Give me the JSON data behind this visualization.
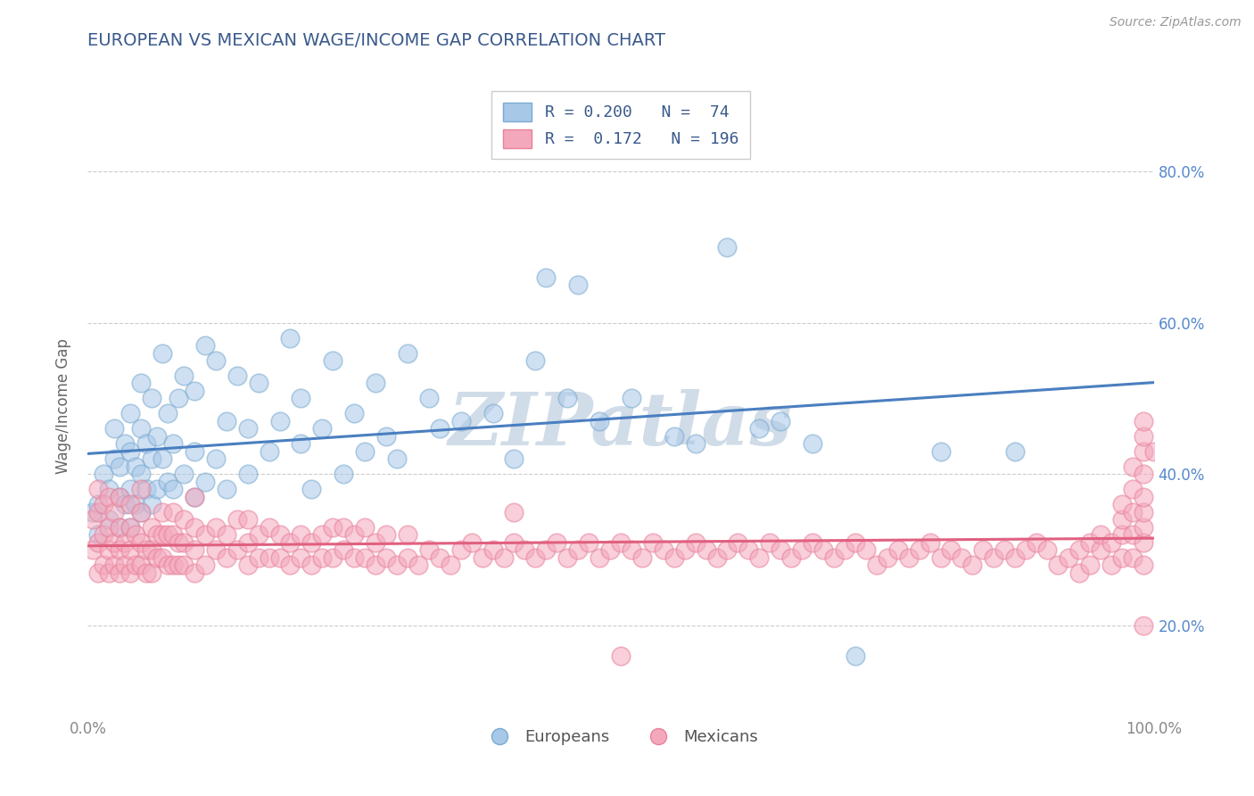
{
  "title": "EUROPEAN VS MEXICAN WAGE/INCOME GAP CORRELATION CHART",
  "source": "Source: ZipAtlas.com",
  "ylabel": "Wage/Income Gap",
  "yticks": [
    0.2,
    0.4,
    0.6,
    0.8
  ],
  "ytick_labels": [
    "20.0%",
    "40.0%",
    "60.0%",
    "80.0%"
  ],
  "xlim": [
    0.0,
    1.0
  ],
  "ylim": [
    0.08,
    0.9
  ],
  "european_color": "#a8c8e8",
  "mexican_color": "#f4a8bc",
  "european_edge_color": "#7aaad0",
  "mexican_edge_color": "#e8809a",
  "european_line_color": "#4a7fc0",
  "mexican_line_color": "#e06080",
  "watermark": "ZIPatlas",
  "watermark_color": "#d0dce8",
  "background_color": "#ffffff",
  "grid_color": "#cccccc",
  "title_color": "#3a5a8c",
  "axis_label_color": "#666666",
  "legend_text_color": "#3a5a8c",
  "european_points": [
    [
      0.005,
      0.35
    ],
    [
      0.01,
      0.32
    ],
    [
      0.01,
      0.36
    ],
    [
      0.015,
      0.4
    ],
    [
      0.02,
      0.34
    ],
    [
      0.02,
      0.38
    ],
    [
      0.025,
      0.42
    ],
    [
      0.025,
      0.46
    ],
    [
      0.03,
      0.33
    ],
    [
      0.03,
      0.37
    ],
    [
      0.03,
      0.41
    ],
    [
      0.035,
      0.36
    ],
    [
      0.035,
      0.44
    ],
    [
      0.04,
      0.33
    ],
    [
      0.04,
      0.38
    ],
    [
      0.04,
      0.43
    ],
    [
      0.04,
      0.48
    ],
    [
      0.045,
      0.36
    ],
    [
      0.045,
      0.41
    ],
    [
      0.05,
      0.35
    ],
    [
      0.05,
      0.4
    ],
    [
      0.05,
      0.46
    ],
    [
      0.05,
      0.52
    ],
    [
      0.055,
      0.38
    ],
    [
      0.055,
      0.44
    ],
    [
      0.06,
      0.36
    ],
    [
      0.06,
      0.42
    ],
    [
      0.06,
      0.5
    ],
    [
      0.065,
      0.38
    ],
    [
      0.065,
      0.45
    ],
    [
      0.07,
      0.56
    ],
    [
      0.07,
      0.42
    ],
    [
      0.075,
      0.39
    ],
    [
      0.075,
      0.48
    ],
    [
      0.08,
      0.38
    ],
    [
      0.08,
      0.44
    ],
    [
      0.085,
      0.5
    ],
    [
      0.09,
      0.4
    ],
    [
      0.09,
      0.53
    ],
    [
      0.1,
      0.37
    ],
    [
      0.1,
      0.43
    ],
    [
      0.1,
      0.51
    ],
    [
      0.11,
      0.39
    ],
    [
      0.11,
      0.57
    ],
    [
      0.12,
      0.42
    ],
    [
      0.12,
      0.55
    ],
    [
      0.13,
      0.38
    ],
    [
      0.13,
      0.47
    ],
    [
      0.14,
      0.53
    ],
    [
      0.15,
      0.4
    ],
    [
      0.15,
      0.46
    ],
    [
      0.16,
      0.52
    ],
    [
      0.17,
      0.43
    ],
    [
      0.18,
      0.47
    ],
    [
      0.19,
      0.58
    ],
    [
      0.2,
      0.44
    ],
    [
      0.2,
      0.5
    ],
    [
      0.21,
      0.38
    ],
    [
      0.22,
      0.46
    ],
    [
      0.23,
      0.55
    ],
    [
      0.24,
      0.4
    ],
    [
      0.25,
      0.48
    ],
    [
      0.26,
      0.43
    ],
    [
      0.27,
      0.52
    ],
    [
      0.28,
      0.45
    ],
    [
      0.29,
      0.42
    ],
    [
      0.3,
      0.56
    ],
    [
      0.32,
      0.5
    ],
    [
      0.33,
      0.46
    ],
    [
      0.35,
      0.47
    ],
    [
      0.38,
      0.48
    ],
    [
      0.4,
      0.42
    ],
    [
      0.42,
      0.55
    ],
    [
      0.43,
      0.66
    ],
    [
      0.45,
      0.5
    ],
    [
      0.46,
      0.65
    ],
    [
      0.48,
      0.47
    ],
    [
      0.51,
      0.5
    ],
    [
      0.55,
      0.45
    ],
    [
      0.57,
      0.44
    ],
    [
      0.6,
      0.7
    ],
    [
      0.63,
      0.46
    ],
    [
      0.65,
      0.47
    ],
    [
      0.68,
      0.44
    ],
    [
      0.72,
      0.16
    ],
    [
      0.8,
      0.43
    ],
    [
      0.87,
      0.43
    ]
  ],
  "mexican_points": [
    [
      0.005,
      0.3
    ],
    [
      0.005,
      0.34
    ],
    [
      0.01,
      0.27
    ],
    [
      0.01,
      0.31
    ],
    [
      0.01,
      0.35
    ],
    [
      0.01,
      0.38
    ],
    [
      0.015,
      0.28
    ],
    [
      0.015,
      0.32
    ],
    [
      0.015,
      0.36
    ],
    [
      0.02,
      0.27
    ],
    [
      0.02,
      0.3
    ],
    [
      0.02,
      0.33
    ],
    [
      0.02,
      0.37
    ],
    [
      0.025,
      0.28
    ],
    [
      0.025,
      0.31
    ],
    [
      0.025,
      0.35
    ],
    [
      0.03,
      0.27
    ],
    [
      0.03,
      0.3
    ],
    [
      0.03,
      0.33
    ],
    [
      0.03,
      0.37
    ],
    [
      0.035,
      0.28
    ],
    [
      0.035,
      0.31
    ],
    [
      0.04,
      0.27
    ],
    [
      0.04,
      0.3
    ],
    [
      0.04,
      0.33
    ],
    [
      0.04,
      0.36
    ],
    [
      0.045,
      0.28
    ],
    [
      0.045,
      0.32
    ],
    [
      0.05,
      0.28
    ],
    [
      0.05,
      0.31
    ],
    [
      0.05,
      0.35
    ],
    [
      0.05,
      0.38
    ],
    [
      0.055,
      0.27
    ],
    [
      0.055,
      0.3
    ],
    [
      0.06,
      0.27
    ],
    [
      0.06,
      0.3
    ],
    [
      0.06,
      0.33
    ],
    [
      0.065,
      0.29
    ],
    [
      0.065,
      0.32
    ],
    [
      0.07,
      0.29
    ],
    [
      0.07,
      0.32
    ],
    [
      0.07,
      0.35
    ],
    [
      0.075,
      0.28
    ],
    [
      0.075,
      0.32
    ],
    [
      0.08,
      0.28
    ],
    [
      0.08,
      0.32
    ],
    [
      0.08,
      0.35
    ],
    [
      0.085,
      0.28
    ],
    [
      0.085,
      0.31
    ],
    [
      0.09,
      0.28
    ],
    [
      0.09,
      0.31
    ],
    [
      0.09,
      0.34
    ],
    [
      0.1,
      0.27
    ],
    [
      0.1,
      0.3
    ],
    [
      0.1,
      0.33
    ],
    [
      0.1,
      0.37
    ],
    [
      0.11,
      0.28
    ],
    [
      0.11,
      0.32
    ],
    [
      0.12,
      0.3
    ],
    [
      0.12,
      0.33
    ],
    [
      0.13,
      0.29
    ],
    [
      0.13,
      0.32
    ],
    [
      0.14,
      0.3
    ],
    [
      0.14,
      0.34
    ],
    [
      0.15,
      0.28
    ],
    [
      0.15,
      0.31
    ],
    [
      0.15,
      0.34
    ],
    [
      0.16,
      0.29
    ],
    [
      0.16,
      0.32
    ],
    [
      0.17,
      0.29
    ],
    [
      0.17,
      0.33
    ],
    [
      0.18,
      0.29
    ],
    [
      0.18,
      0.32
    ],
    [
      0.19,
      0.28
    ],
    [
      0.19,
      0.31
    ],
    [
      0.2,
      0.29
    ],
    [
      0.2,
      0.32
    ],
    [
      0.21,
      0.28
    ],
    [
      0.21,
      0.31
    ],
    [
      0.22,
      0.29
    ],
    [
      0.22,
      0.32
    ],
    [
      0.23,
      0.29
    ],
    [
      0.23,
      0.33
    ],
    [
      0.24,
      0.3
    ],
    [
      0.24,
      0.33
    ],
    [
      0.25,
      0.29
    ],
    [
      0.25,
      0.32
    ],
    [
      0.26,
      0.29
    ],
    [
      0.26,
      0.33
    ],
    [
      0.27,
      0.28
    ],
    [
      0.27,
      0.31
    ],
    [
      0.28,
      0.29
    ],
    [
      0.28,
      0.32
    ],
    [
      0.29,
      0.28
    ],
    [
      0.3,
      0.29
    ],
    [
      0.3,
      0.32
    ],
    [
      0.31,
      0.28
    ],
    [
      0.32,
      0.3
    ],
    [
      0.33,
      0.29
    ],
    [
      0.34,
      0.28
    ],
    [
      0.35,
      0.3
    ],
    [
      0.36,
      0.31
    ],
    [
      0.37,
      0.29
    ],
    [
      0.38,
      0.3
    ],
    [
      0.39,
      0.29
    ],
    [
      0.4,
      0.31
    ],
    [
      0.4,
      0.35
    ],
    [
      0.41,
      0.3
    ],
    [
      0.42,
      0.29
    ],
    [
      0.43,
      0.3
    ],
    [
      0.44,
      0.31
    ],
    [
      0.45,
      0.29
    ],
    [
      0.46,
      0.3
    ],
    [
      0.47,
      0.31
    ],
    [
      0.48,
      0.29
    ],
    [
      0.49,
      0.3
    ],
    [
      0.5,
      0.31
    ],
    [
      0.5,
      0.16
    ],
    [
      0.51,
      0.3
    ],
    [
      0.52,
      0.29
    ],
    [
      0.53,
      0.31
    ],
    [
      0.54,
      0.3
    ],
    [
      0.55,
      0.29
    ],
    [
      0.56,
      0.3
    ],
    [
      0.57,
      0.31
    ],
    [
      0.58,
      0.3
    ],
    [
      0.59,
      0.29
    ],
    [
      0.6,
      0.3
    ],
    [
      0.61,
      0.31
    ],
    [
      0.62,
      0.3
    ],
    [
      0.63,
      0.29
    ],
    [
      0.64,
      0.31
    ],
    [
      0.65,
      0.3
    ],
    [
      0.66,
      0.29
    ],
    [
      0.67,
      0.3
    ],
    [
      0.68,
      0.31
    ],
    [
      0.69,
      0.3
    ],
    [
      0.7,
      0.29
    ],
    [
      0.71,
      0.3
    ],
    [
      0.72,
      0.31
    ],
    [
      0.73,
      0.3
    ],
    [
      0.74,
      0.28
    ],
    [
      0.75,
      0.29
    ],
    [
      0.76,
      0.3
    ],
    [
      0.77,
      0.29
    ],
    [
      0.78,
      0.3
    ],
    [
      0.79,
      0.31
    ],
    [
      0.8,
      0.29
    ],
    [
      0.81,
      0.3
    ],
    [
      0.82,
      0.29
    ],
    [
      0.83,
      0.28
    ],
    [
      0.84,
      0.3
    ],
    [
      0.85,
      0.29
    ],
    [
      0.86,
      0.3
    ],
    [
      0.87,
      0.29
    ],
    [
      0.88,
      0.3
    ],
    [
      0.89,
      0.31
    ],
    [
      0.9,
      0.3
    ],
    [
      0.91,
      0.28
    ],
    [
      0.92,
      0.29
    ],
    [
      0.93,
      0.3
    ],
    [
      0.93,
      0.27
    ],
    [
      0.94,
      0.31
    ],
    [
      0.94,
      0.28
    ],
    [
      0.95,
      0.3
    ],
    [
      0.95,
      0.32
    ],
    [
      0.96,
      0.28
    ],
    [
      0.96,
      0.31
    ],
    [
      0.97,
      0.29
    ],
    [
      0.97,
      0.32
    ],
    [
      0.97,
      0.34
    ],
    [
      0.97,
      0.36
    ],
    [
      0.98,
      0.29
    ],
    [
      0.98,
      0.32
    ],
    [
      0.98,
      0.35
    ],
    [
      0.98,
      0.38
    ],
    [
      0.98,
      0.41
    ],
    [
      0.99,
      0.2
    ],
    [
      0.99,
      0.28
    ],
    [
      0.99,
      0.31
    ],
    [
      0.99,
      0.33
    ],
    [
      0.99,
      0.35
    ],
    [
      0.99,
      0.37
    ],
    [
      0.99,
      0.4
    ],
    [
      0.99,
      0.43
    ],
    [
      0.99,
      0.45
    ],
    [
      0.99,
      0.47
    ],
    [
      1.0,
      0.43
    ]
  ]
}
